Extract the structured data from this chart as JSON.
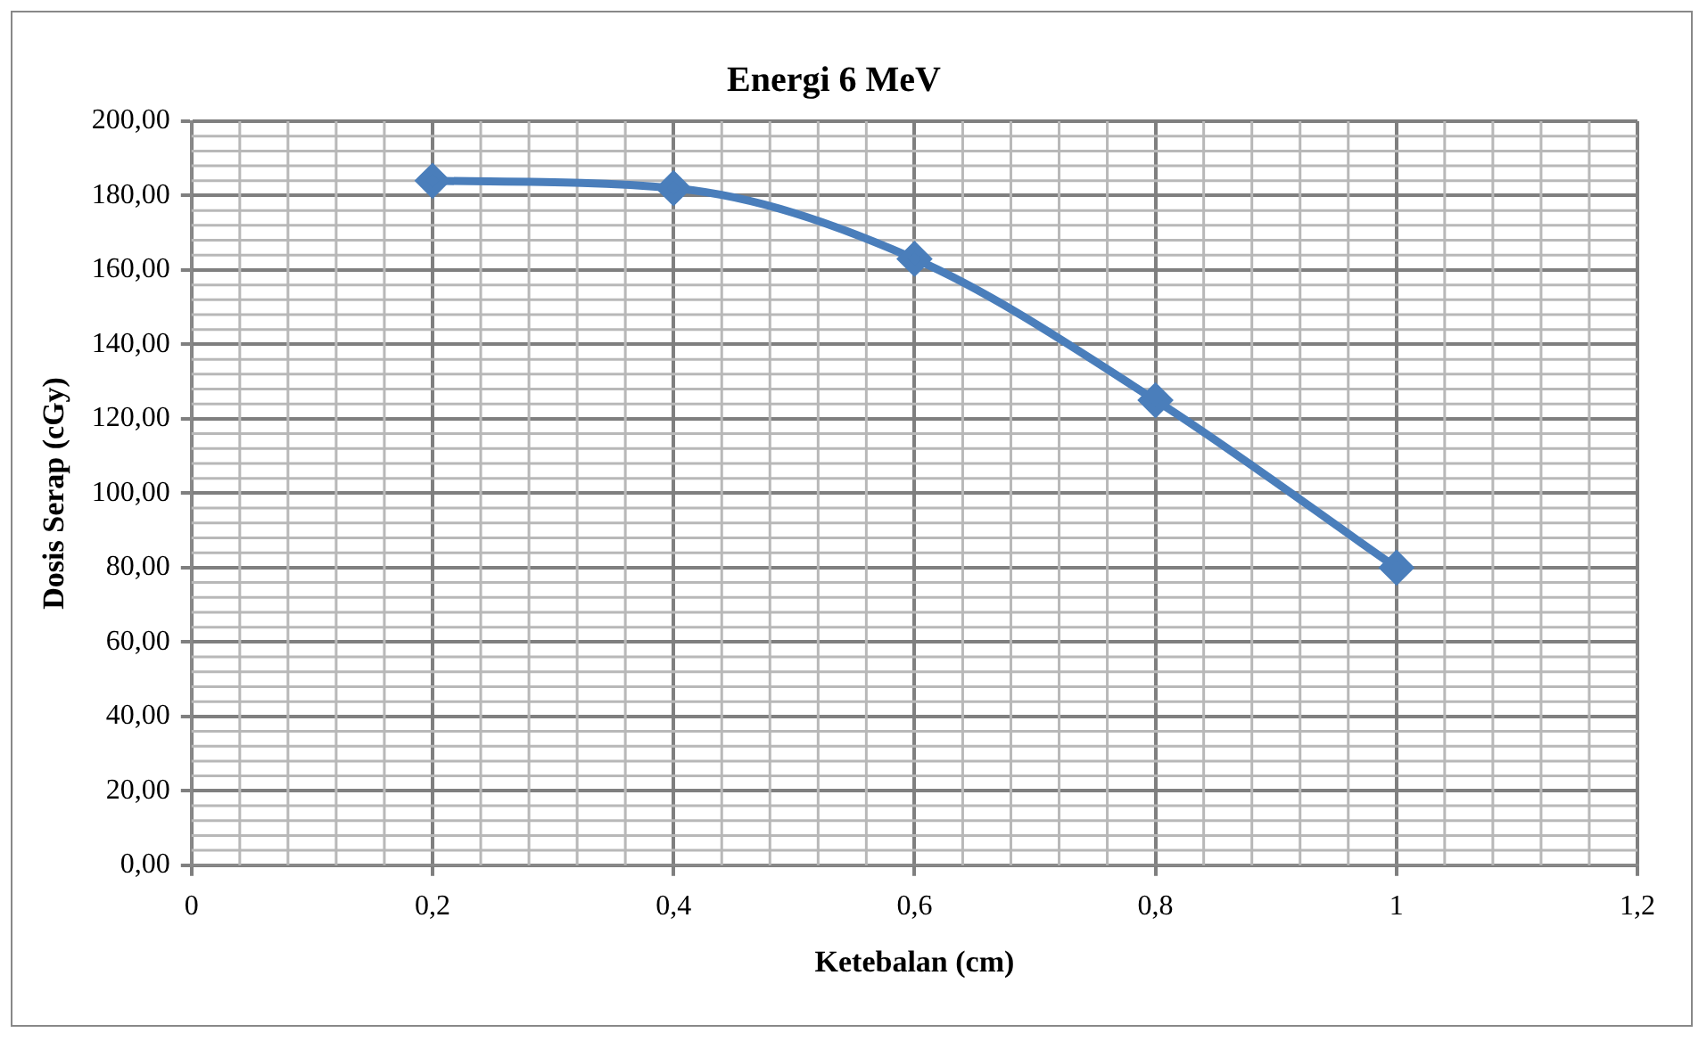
{
  "chart_data": {
    "type": "line",
    "title": "Energi 6 MeV",
    "xlabel": "Ketebalan (cm)",
    "ylabel": "Dosis Serap (cGy)",
    "x": [
      0.2,
      0.4,
      0.6,
      0.8,
      1
    ],
    "series": [
      {
        "color": "#4a7ebb",
        "values": [
          184,
          182,
          163,
          125,
          80
        ]
      }
    ],
    "xlim": [
      0,
      1.2
    ],
    "xticks": [
      0,
      {
        "value": 0.2,
        "label": "0,2"
      },
      {
        "value": 0.4,
        "label": "0,4"
      },
      {
        "value": 0.6,
        "label": "0,6"
      },
      {
        "value": 0.8,
        "label": "0,8"
      },
      1,
      {
        "value": 1.2,
        "label": "1,2"
      }
    ],
    "ylim": [
      0,
      200
    ],
    "yticks": [
      {
        "value": 0,
        "label": "0,00"
      },
      {
        "value": 20,
        "label": "20,00"
      },
      {
        "value": 40,
        "label": "40,00"
      },
      {
        "value": 60,
        "label": "60,00"
      },
      {
        "value": 80,
        "label": "80,00"
      },
      {
        "value": 100,
        "label": "100,00"
      },
      {
        "value": 120,
        "label": "120,00"
      },
      {
        "value": 140,
        "label": "140,00"
      },
      {
        "value": 160,
        "label": "160,00"
      },
      {
        "value": 180,
        "label": "180,00"
      },
      {
        "value": 200,
        "label": "200,00"
      }
    ],
    "grid": true,
    "legend": false,
    "marker": "diamond",
    "line_style": "solid"
  }
}
